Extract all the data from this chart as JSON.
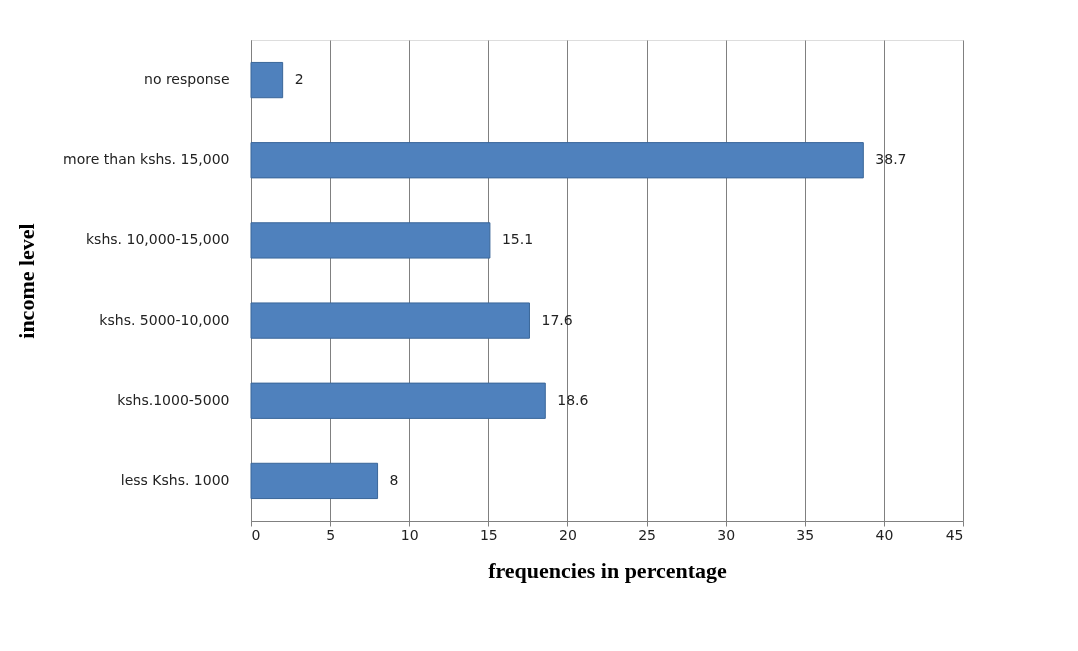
{
  "chart_data": {
    "type": "bar",
    "orientation": "horizontal",
    "xlabel": "frequencies in percentage",
    "ylabel": "income level",
    "categories": [
      "no response",
      "more than  kshs. 15,000",
      "kshs. 10,000-15,000",
      "kshs. 5000-10,000",
      "kshs.1000-5000",
      "less Kshs. 1000"
    ],
    "values": [
      2,
      38.7,
      15.1,
      17.6,
      18.6,
      8
    ],
    "color": "#4f81bd",
    "xlim": [
      0,
      45
    ],
    "xticks": [
      0,
      5,
      10,
      15,
      20,
      25,
      30,
      35,
      40,
      45
    ],
    "grid": "x",
    "data_labels": true
  }
}
